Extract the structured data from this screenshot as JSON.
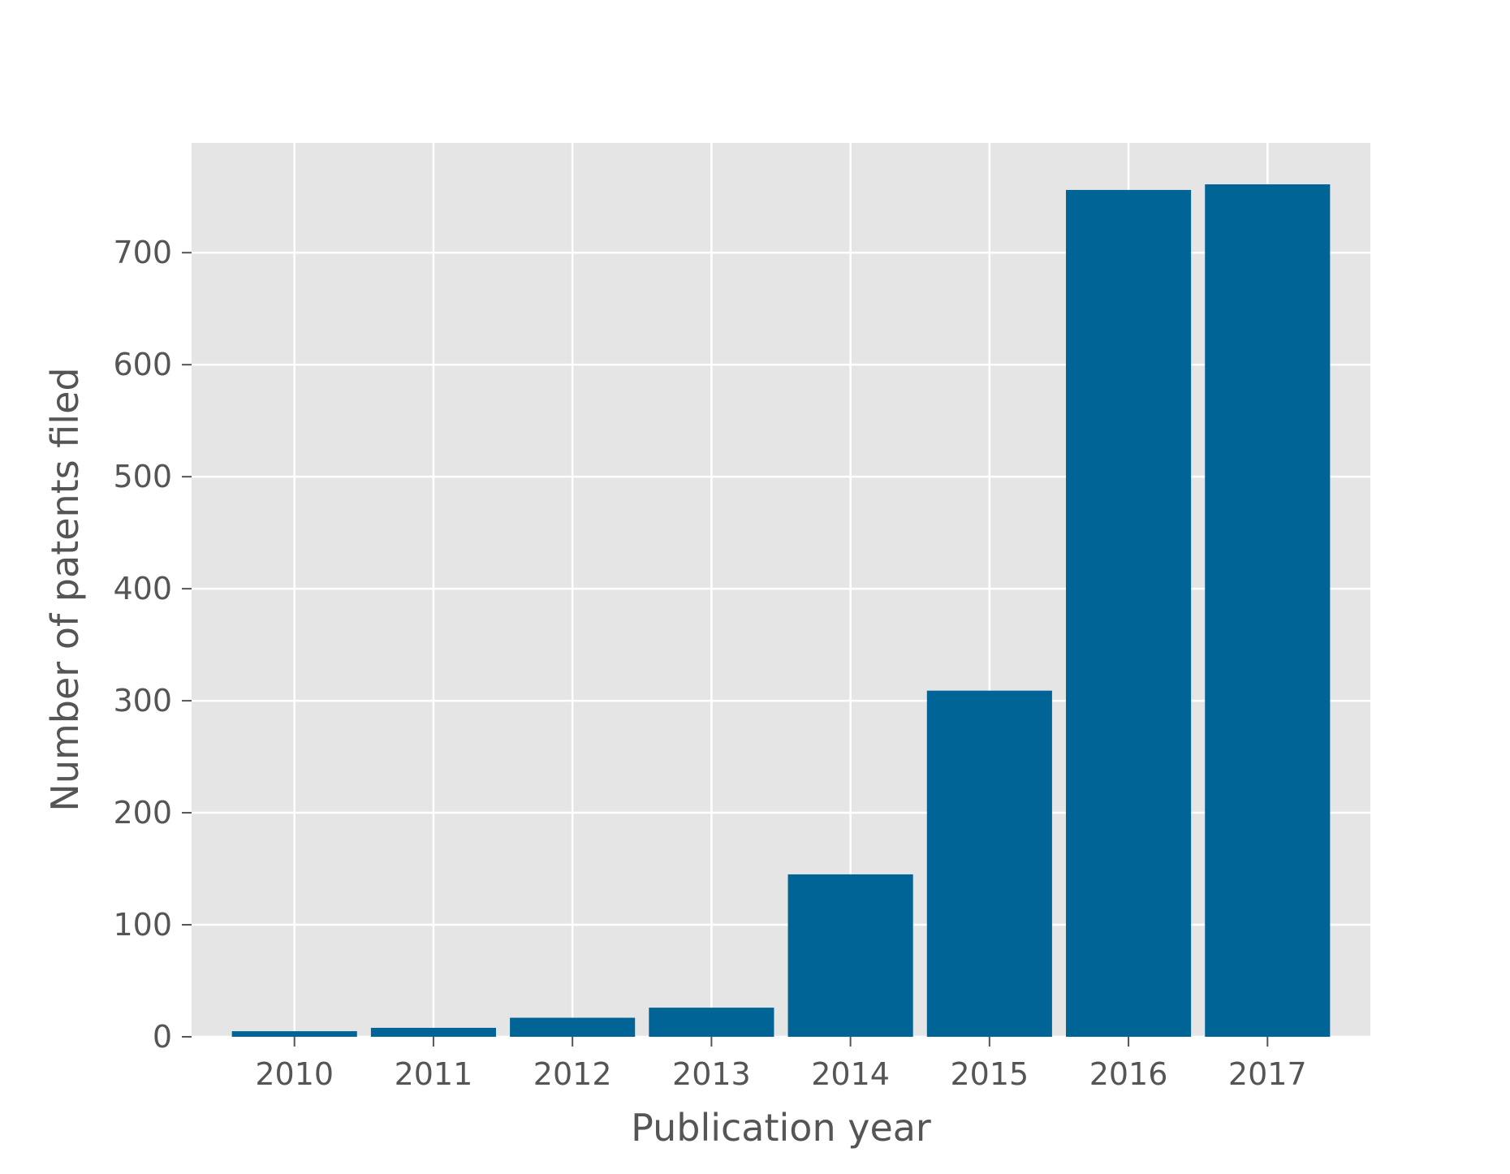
{
  "chart_data": {
    "type": "bar",
    "title": "",
    "xlabel": "Publication year",
    "ylabel": "Number of patents filed",
    "categories": [
      "2010",
      "2011",
      "2012",
      "2013",
      "2014",
      "2015",
      "2016",
      "2017"
    ],
    "values": [
      5,
      8,
      17,
      26,
      145,
      309,
      756,
      761
    ],
    "ylim": [
      0,
      798
    ],
    "yticks": [
      0,
      100,
      200,
      300,
      400,
      500,
      600,
      700
    ],
    "grid": true,
    "legend": "none",
    "colors": {
      "bar": "#006496",
      "plot_background": "#e5e5e5",
      "grid": "#ffffff",
      "text": "#555555"
    }
  }
}
